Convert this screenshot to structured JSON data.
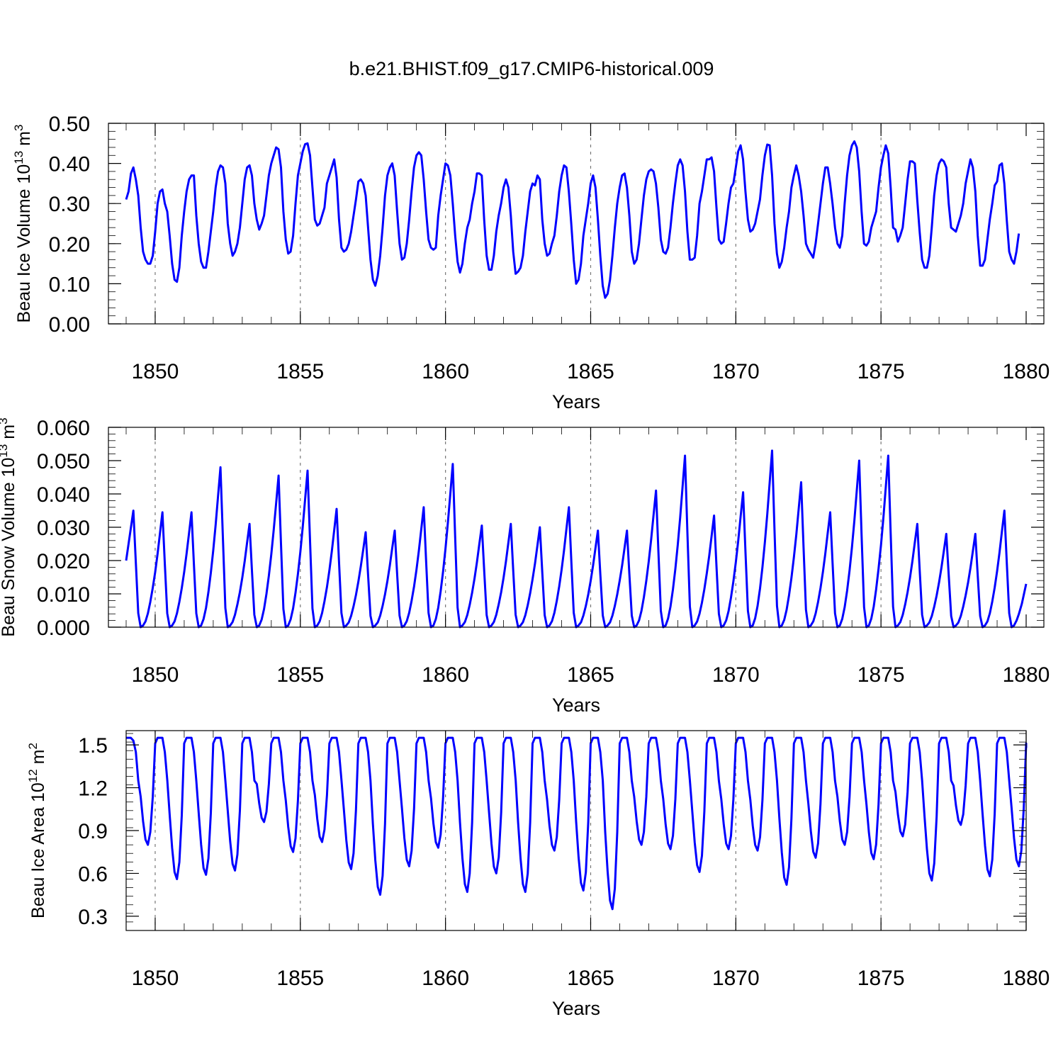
{
  "title": "b.e21.BHIST.f09_g17.CMIP6-historical.009",
  "chart_data": [
    {
      "type": "line",
      "name": "beau-ice-volume",
      "ylabel": "Beau Ice Volume 10",
      "ylabel_exp": "13",
      "ylabel_unit": " m",
      "ylabel_unit_exp": "3",
      "xlabel": "Years",
      "xlim": [
        1849,
        1880
      ],
      "ylim": [
        0,
        0.5
      ],
      "yticks": [
        0,
        0.1,
        0.2,
        0.3,
        0.4,
        0.5
      ],
      "ytick_labels": [
        "0.00",
        "0.10",
        "0.20",
        "0.30",
        "0.40",
        "0.50"
      ],
      "yminor": 0.02,
      "xticks": [
        1850,
        1855,
        1860,
        1865,
        1870,
        1875,
        1880
      ],
      "xtick_labels": [
        "1850",
        "1855",
        "1860",
        "1865",
        "1870",
        "1875",
        "1880"
      ],
      "vlines": [
        1850,
        1855,
        1860,
        1865,
        1870,
        1875
      ],
      "color": "#0000ff",
      "series": [
        {
          "name": "Beau Ice Volume",
          "start": 1849.0,
          "step": 0.08333,
          "values": [
            0.31,
            0.33,
            0.375,
            0.39,
            0.36,
            0.32,
            0.24,
            0.18,
            0.16,
            0.15,
            0.15,
            0.17,
            0.23,
            0.3,
            0.33,
            0.335,
            0.3,
            0.28,
            0.22,
            0.15,
            0.11,
            0.105,
            0.14,
            0.22,
            0.28,
            0.33,
            0.36,
            0.37,
            0.37,
            0.27,
            0.2,
            0.155,
            0.14,
            0.14,
            0.18,
            0.23,
            0.28,
            0.34,
            0.38,
            0.395,
            0.39,
            0.35,
            0.25,
            0.2,
            0.17,
            0.18,
            0.2,
            0.24,
            0.3,
            0.36,
            0.39,
            0.395,
            0.37,
            0.3,
            0.26,
            0.235,
            0.25,
            0.27,
            0.32,
            0.37,
            0.4,
            0.42,
            0.44,
            0.435,
            0.39,
            0.28,
            0.21,
            0.175,
            0.18,
            0.22,
            0.3,
            0.37,
            0.4,
            0.43,
            0.448,
            0.45,
            0.42,
            0.34,
            0.26,
            0.245,
            0.25,
            0.27,
            0.29,
            0.35,
            0.37,
            0.39,
            0.41,
            0.365,
            0.26,
            0.19,
            0.18,
            0.185,
            0.2,
            0.23,
            0.27,
            0.31,
            0.355,
            0.36,
            0.35,
            0.32,
            0.24,
            0.16,
            0.11,
            0.095,
            0.12,
            0.17,
            0.24,
            0.32,
            0.37,
            0.39,
            0.4,
            0.37,
            0.28,
            0.2,
            0.16,
            0.165,
            0.2,
            0.26,
            0.33,
            0.39,
            0.42,
            0.428,
            0.42,
            0.36,
            0.28,
            0.21,
            0.19,
            0.185,
            0.19,
            0.27,
            0.32,
            0.36,
            0.4,
            0.395,
            0.37,
            0.3,
            0.22,
            0.155,
            0.128,
            0.15,
            0.2,
            0.24,
            0.26,
            0.3,
            0.33,
            0.375,
            0.375,
            0.37,
            0.26,
            0.17,
            0.135,
            0.135,
            0.17,
            0.23,
            0.27,
            0.3,
            0.34,
            0.36,
            0.34,
            0.27,
            0.18,
            0.125,
            0.13,
            0.14,
            0.17,
            0.23,
            0.28,
            0.33,
            0.35,
            0.345,
            0.37,
            0.36,
            0.26,
            0.2,
            0.17,
            0.175,
            0.2,
            0.22,
            0.27,
            0.33,
            0.37,
            0.395,
            0.39,
            0.33,
            0.25,
            0.16,
            0.1,
            0.11,
            0.15,
            0.22,
            0.26,
            0.3,
            0.35,
            0.37,
            0.34,
            0.26,
            0.17,
            0.095,
            0.065,
            0.075,
            0.11,
            0.17,
            0.24,
            0.3,
            0.34,
            0.37,
            0.375,
            0.34,
            0.27,
            0.18,
            0.15,
            0.16,
            0.2,
            0.26,
            0.32,
            0.36,
            0.38,
            0.385,
            0.38,
            0.35,
            0.29,
            0.21,
            0.18,
            0.175,
            0.19,
            0.24,
            0.3,
            0.35,
            0.395,
            0.41,
            0.395,
            0.33,
            0.23,
            0.16,
            0.16,
            0.165,
            0.22,
            0.3,
            0.33,
            0.37,
            0.41,
            0.41,
            0.415,
            0.38,
            0.29,
            0.21,
            0.2,
            0.205,
            0.25,
            0.3,
            0.34,
            0.35,
            0.39,
            0.43,
            0.445,
            0.41,
            0.33,
            0.26,
            0.23,
            0.235,
            0.25,
            0.28,
            0.31,
            0.37,
            0.42,
            0.447,
            0.445,
            0.37,
            0.25,
            0.175,
            0.14,
            0.155,
            0.19,
            0.24,
            0.28,
            0.34,
            0.37,
            0.395,
            0.37,
            0.33,
            0.27,
            0.2,
            0.185,
            0.175,
            0.165,
            0.2,
            0.25,
            0.3,
            0.35,
            0.39,
            0.39,
            0.35,
            0.3,
            0.24,
            0.2,
            0.19,
            0.22,
            0.3,
            0.37,
            0.42,
            0.445,
            0.455,
            0.44,
            0.38,
            0.28,
            0.2,
            0.195,
            0.205,
            0.24,
            0.26,
            0.28,
            0.34,
            0.39,
            0.42,
            0.445,
            0.425,
            0.34,
            0.24,
            0.235,
            0.205,
            0.22,
            0.24,
            0.3,
            0.36,
            0.405,
            0.405,
            0.4,
            0.31,
            0.23,
            0.16,
            0.14,
            0.14,
            0.17,
            0.24,
            0.32,
            0.37,
            0.4,
            0.41,
            0.405,
            0.39,
            0.3,
            0.24,
            0.235,
            0.23,
            0.25,
            0.27,
            0.3,
            0.35,
            0.38,
            0.41,
            0.39,
            0.33,
            0.22,
            0.145,
            0.145,
            0.16,
            0.21,
            0.26,
            0.3,
            0.345,
            0.355,
            0.395,
            0.4,
            0.35,
            0.26,
            0.18,
            0.16,
            0.15,
            0.18,
            0.225
          ]
        }
      ]
    },
    {
      "type": "line",
      "name": "beau-snow-volume",
      "ylabel": "Beau Snow Volume 10",
      "ylabel_exp": "13",
      "ylabel_unit": " m",
      "ylabel_unit_exp": "3",
      "xlabel": "Years",
      "xlim": [
        1849,
        1880
      ],
      "ylim": [
        0,
        0.06
      ],
      "yticks": [
        0,
        0.01,
        0.02,
        0.03,
        0.04,
        0.05,
        0.06
      ],
      "ytick_labels": [
        "0.000",
        "0.010",
        "0.020",
        "0.030",
        "0.040",
        "0.050",
        "0.060"
      ],
      "yminor": 0.002,
      "xticks": [
        1850,
        1855,
        1860,
        1865,
        1870,
        1875,
        1880
      ],
      "xtick_labels": [
        "1850",
        "1855",
        "1860",
        "1865",
        "1870",
        "1875",
        "1880"
      ],
      "vlines": [
        1850,
        1855,
        1860,
        1865,
        1870,
        1875
      ],
      "color": "#0000ff",
      "series": [
        {
          "name": "Beau Snow Volume",
          "peaks": [
            {
              "year": 1849.0,
              "value": 0.02,
              "kind": "start"
            },
            {
              "year": 1849.25,
              "value": 0.035
            },
            {
              "year": 1850.25,
              "value": 0.0345
            },
            {
              "year": 1851.25,
              "value": 0.0345
            },
            {
              "year": 1852.25,
              "value": 0.048
            },
            {
              "year": 1853.25,
              "value": 0.031
            },
            {
              "year": 1854.25,
              "value": 0.0455
            },
            {
              "year": 1855.25,
              "value": 0.047
            },
            {
              "year": 1856.25,
              "value": 0.0355
            },
            {
              "year": 1857.25,
              "value": 0.0285
            },
            {
              "year": 1858.25,
              "value": 0.029
            },
            {
              "year": 1859.25,
              "value": 0.036
            },
            {
              "year": 1860.25,
              "value": 0.049
            },
            {
              "year": 1861.25,
              "value": 0.0305
            },
            {
              "year": 1862.25,
              "value": 0.031
            },
            {
              "year": 1863.25,
              "value": 0.03
            },
            {
              "year": 1864.25,
              "value": 0.036
            },
            {
              "year": 1865.25,
              "value": 0.029
            },
            {
              "year": 1866.25,
              "value": 0.029
            },
            {
              "year": 1867.25,
              "value": 0.041
            },
            {
              "year": 1868.25,
              "value": 0.0515
            },
            {
              "year": 1869.25,
              "value": 0.0335
            },
            {
              "year": 1870.25,
              "value": 0.0405
            },
            {
              "year": 1871.25,
              "value": 0.053
            },
            {
              "year": 1872.25,
              "value": 0.0435
            },
            {
              "year": 1873.25,
              "value": 0.0345
            },
            {
              "year": 1874.25,
              "value": 0.05
            },
            {
              "year": 1875.25,
              "value": 0.0515
            },
            {
              "year": 1876.25,
              "value": 0.031
            },
            {
              "year": 1877.25,
              "value": 0.028
            },
            {
              "year": 1878.25,
              "value": 0.028
            },
            {
              "year": 1879.25,
              "value": 0.035
            },
            {
              "year": 1880.0,
              "value": 0.013,
              "kind": "end"
            }
          ]
        }
      ]
    },
    {
      "type": "line",
      "name": "beau-ice-area",
      "ylabel": "Beau Ice Area 10",
      "ylabel_exp": "12",
      "ylabel_unit": " m",
      "ylabel_unit_exp": "2",
      "xlabel": "Years",
      "xlim": [
        1849,
        1880
      ],
      "ylim": [
        0.2,
        1.6
      ],
      "yticks": [
        0.3,
        0.6,
        0.9,
        1.2,
        1.5
      ],
      "ytick_labels": [
        "0.3",
        "0.6",
        "0.9",
        "1.2",
        "1.5"
      ],
      "yminor": 0.06,
      "xticks": [
        1850,
        1855,
        1860,
        1865,
        1870,
        1875,
        1880
      ],
      "xtick_labels": [
        "1850",
        "1855",
        "1860",
        "1865",
        "1870",
        "1875",
        "1880"
      ],
      "vlines": [
        1850,
        1855,
        1860,
        1865,
        1870,
        1875
      ],
      "color": "#0000ff",
      "series": [
        {
          "name": "Beau Ice Area",
          "max": 1.55,
          "minima": [
            {
              "year": 1849.75,
              "value": 0.8
            },
            {
              "year": 1850.75,
              "value": 0.56
            },
            {
              "year": 1851.75,
              "value": 0.59
            },
            {
              "year": 1852.75,
              "value": 0.62
            },
            {
              "year": 1853.75,
              "value": 0.96
            },
            {
              "year": 1854.75,
              "value": 0.75
            },
            {
              "year": 1855.75,
              "value": 0.82
            },
            {
              "year": 1856.75,
              "value": 0.63
            },
            {
              "year": 1857.75,
              "value": 0.45
            },
            {
              "year": 1858.75,
              "value": 0.65
            },
            {
              "year": 1859.75,
              "value": 0.78
            },
            {
              "year": 1860.75,
              "value": 0.47
            },
            {
              "year": 1861.75,
              "value": 0.6
            },
            {
              "year": 1862.75,
              "value": 0.47
            },
            {
              "year": 1863.75,
              "value": 0.76
            },
            {
              "year": 1864.75,
              "value": 0.48
            },
            {
              "year": 1865.75,
              "value": 0.35
            },
            {
              "year": 1866.75,
              "value": 0.8
            },
            {
              "year": 1867.75,
              "value": 0.77
            },
            {
              "year": 1868.75,
              "value": 0.61
            },
            {
              "year": 1869.75,
              "value": 0.77
            },
            {
              "year": 1870.75,
              "value": 0.76
            },
            {
              "year": 1871.75,
              "value": 0.52
            },
            {
              "year": 1872.75,
              "value": 0.71
            },
            {
              "year": 1873.75,
              "value": 0.8
            },
            {
              "year": 1874.75,
              "value": 0.7
            },
            {
              "year": 1875.75,
              "value": 0.86
            },
            {
              "year": 1876.75,
              "value": 0.55
            },
            {
              "year": 1877.75,
              "value": 0.94
            },
            {
              "year": 1878.75,
              "value": 0.58
            },
            {
              "year": 1879.75,
              "value": 0.65
            }
          ],
          "end_value": 1.48
        }
      ]
    }
  ]
}
